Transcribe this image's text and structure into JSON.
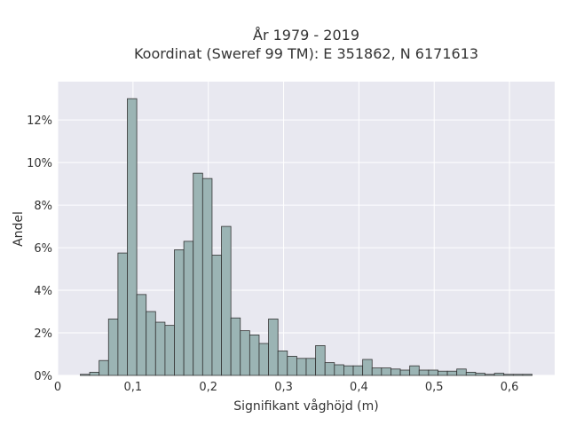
{
  "chart_data": {
    "type": "bar",
    "title": "År 1979 - 2019",
    "subtitle": "Koordinat (Sweref 99 TM): E 351862, N 6171613",
    "xlabel": "Signifikant våghöjd (m)",
    "ylabel": "Andel",
    "xlim": [
      0,
      0.66
    ],
    "ylim": [
      0,
      13.8
    ],
    "x_ticks": [
      0,
      0.1,
      0.2,
      0.3,
      0.4,
      0.5,
      0.6
    ],
    "x_tick_labels": [
      "0",
      "0,1",
      "0,2",
      "0,3",
      "0,4",
      "0,5",
      "0,6"
    ],
    "y_ticks": [
      0,
      2,
      4,
      6,
      8,
      10,
      12
    ],
    "y_tick_labels": [
      "0%",
      "2%",
      "4%",
      "6%",
      "8%",
      "10%",
      "12%"
    ],
    "bin_width": 0.0125,
    "bin_start": 0.03,
    "values": [
      0.05,
      0.15,
      0.7,
      2.65,
      5.75,
      13.0,
      3.8,
      3.0,
      2.5,
      2.35,
      5.9,
      6.3,
      9.5,
      9.25,
      5.65,
      7.0,
      2.7,
      2.1,
      1.9,
      1.5,
      2.65,
      1.15,
      0.9,
      0.8,
      0.8,
      1.4,
      0.6,
      0.5,
      0.45,
      0.45,
      0.75,
      0.35,
      0.35,
      0.3,
      0.25,
      0.45,
      0.25,
      0.25,
      0.2,
      0.2,
      0.3,
      0.15,
      0.1,
      0.05,
      0.1,
      0.05,
      0.05,
      0.05
    ],
    "colors": {
      "background": "#e8e8f0",
      "bar_fill": "#9bb4b4",
      "bar_edge": "#333333",
      "grid": "#ffffff"
    },
    "grid": true
  }
}
